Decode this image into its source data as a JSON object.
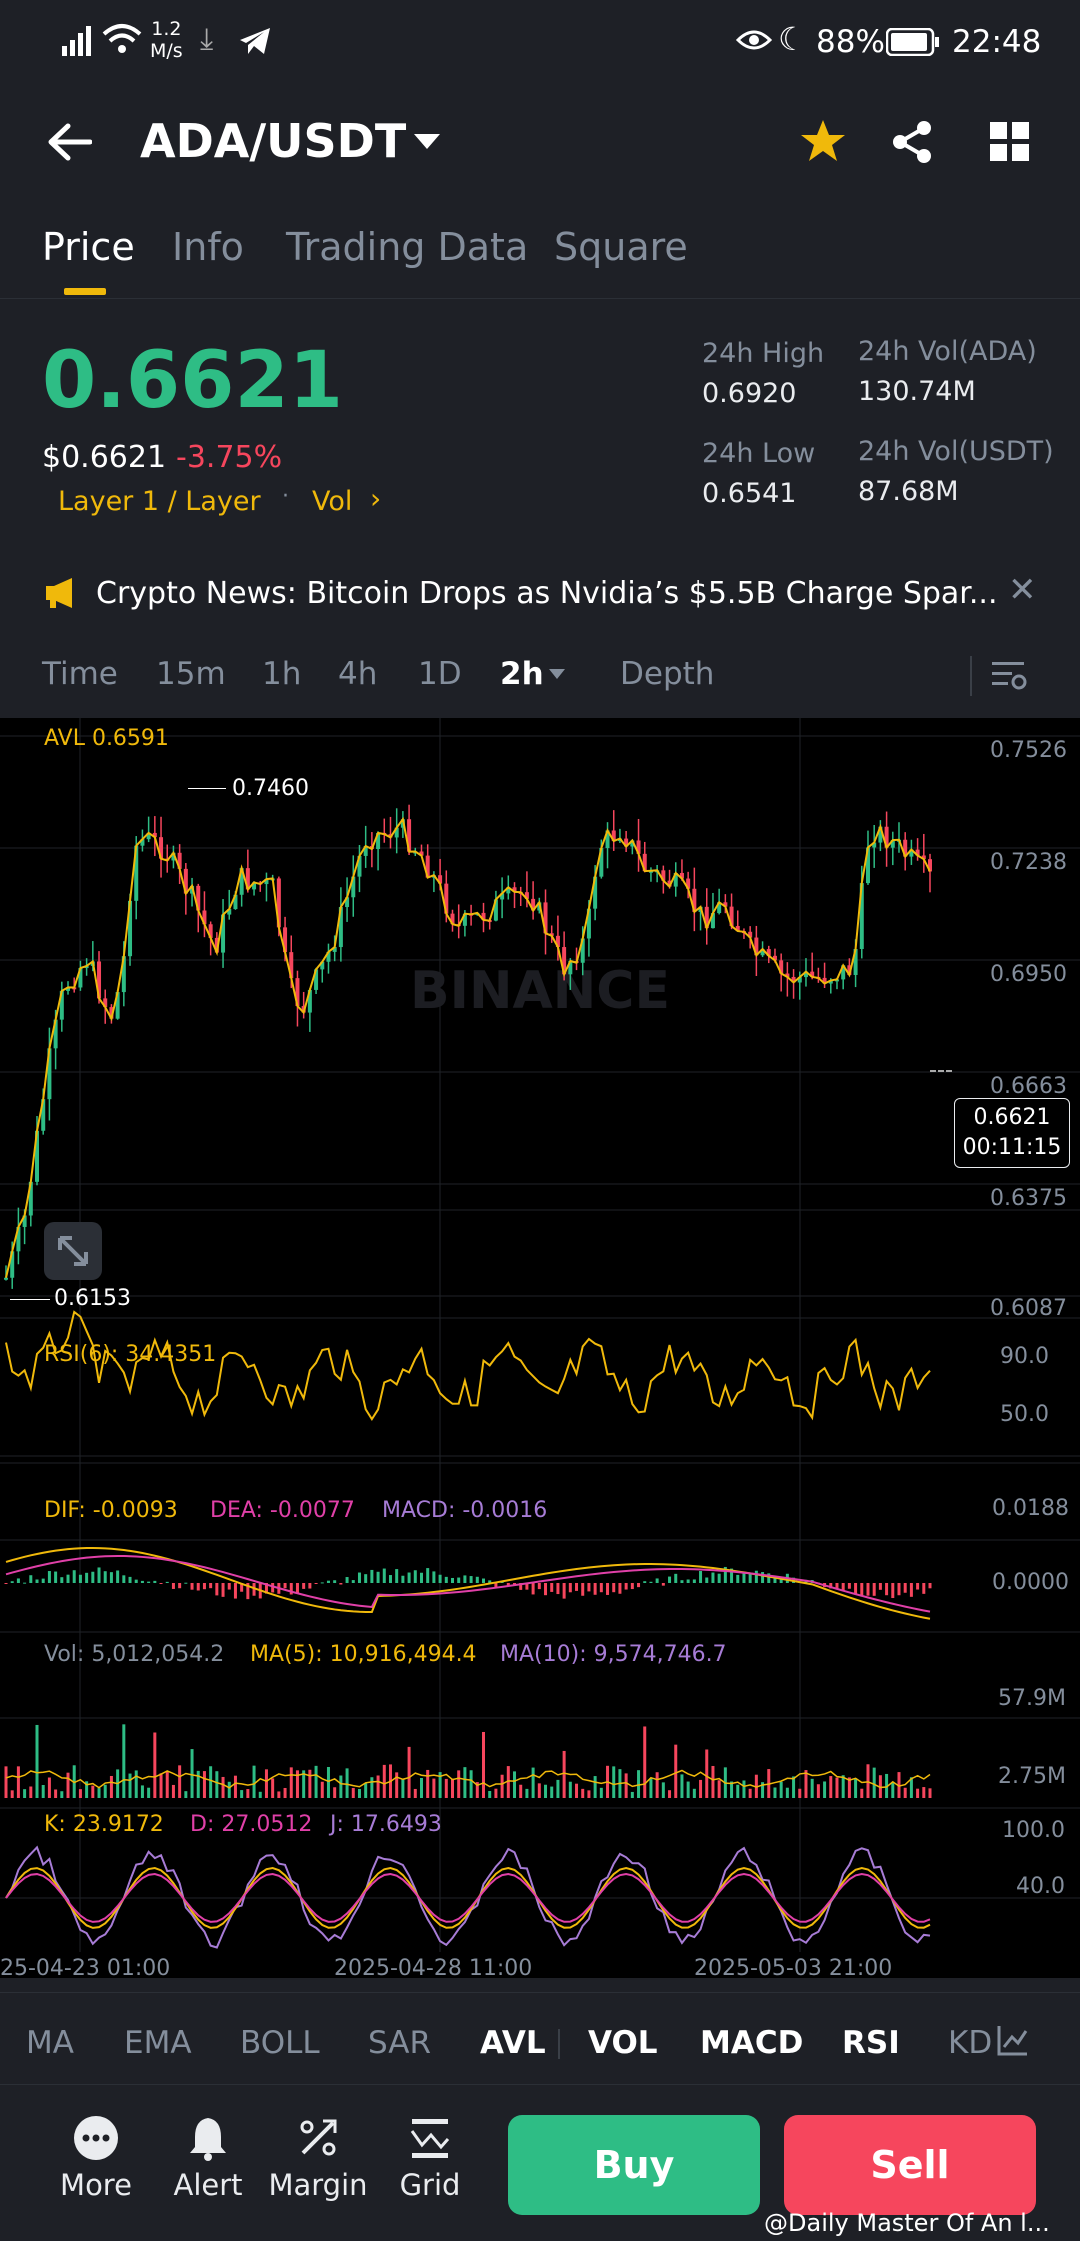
{
  "status": {
    "speed": "1.2",
    "speed_unit": "M/s",
    "battery": "88%",
    "time": "22:48"
  },
  "nav": {
    "pair": "ADA/USDT"
  },
  "tabs": [
    "Price",
    "Info",
    "Trading Data",
    "Square"
  ],
  "price": {
    "last": "0.6621",
    "usd": "$0.6621",
    "change": "-3.75%",
    "tag": "Layer 1 / Layer",
    "vol_link": "Vol",
    "high_label": "24h High",
    "high": "0.6920",
    "low_label": "24h Low",
    "low": "0.6541",
    "vol_ada_label": "24h Vol(ADA)",
    "vol_ada": "130.74M",
    "vol_usdt_label": "24h Vol(USDT)",
    "vol_usdt": "87.68M"
  },
  "news": {
    "text": "Crypto News: Bitcoin Drops as Nvidia’s $5.5B Charge Spar..."
  },
  "timeframes": {
    "time": "Time",
    "m15": "15m",
    "h1": "1h",
    "h4": "4h",
    "d1": "1D",
    "h2": "2h",
    "depth": "Depth"
  },
  "chart": {
    "avl": "AVL 0.6591",
    "price_axis": [
      "0.7526",
      "0.7238",
      "0.6950",
      "0.6663",
      "0.6375",
      "0.6087"
    ],
    "high_marker": "0.7460",
    "low_marker": "0.6153",
    "current_price": "0.6621",
    "countdown": "00:11:15",
    "watermark": "BINANCE",
    "rsi_label": "RSI(6): 34.4351",
    "rsi_axis": [
      "90.0",
      "50.0"
    ],
    "dif_label": "DIF: -0.0093",
    "dea_label": "DEA: -0.0077",
    "macd_label": "MACD: -0.0016",
    "macd_axis": [
      "0.0188",
      "0.0000"
    ],
    "vol_label": "Vol: 5,012,054.2",
    "ma5_label": "MA(5): 10,916,494.4",
    "ma10_label": "MA(10): 9,574,746.7",
    "vol_axis": [
      "57.9M",
      "2.75M"
    ],
    "k_label": "K: 23.9172",
    "d_label": "D: 27.0512",
    "j_label": "J: 17.6493",
    "kdj_axis": [
      "100.0",
      "40.0"
    ],
    "dates": [
      "25-04-23 01:00",
      "2025-04-28 11:00",
      "2025-05-03 21:00"
    ]
  },
  "indicators": [
    "MA",
    "EMA",
    "BOLL",
    "SAR",
    "AVL",
    "VOL",
    "MACD",
    "RSI",
    "KD"
  ],
  "bottom": {
    "more": "More",
    "alert": "Alert",
    "margin": "Margin",
    "grid": "Grid",
    "buy": "Buy",
    "sell": "Sell"
  },
  "watermark_user": "@Daily Master Of An  l...",
  "colors": {
    "up": "#2ebd85",
    "down": "#f6465d",
    "accent": "#f0b90b",
    "bg": "#1e2026"
  }
}
